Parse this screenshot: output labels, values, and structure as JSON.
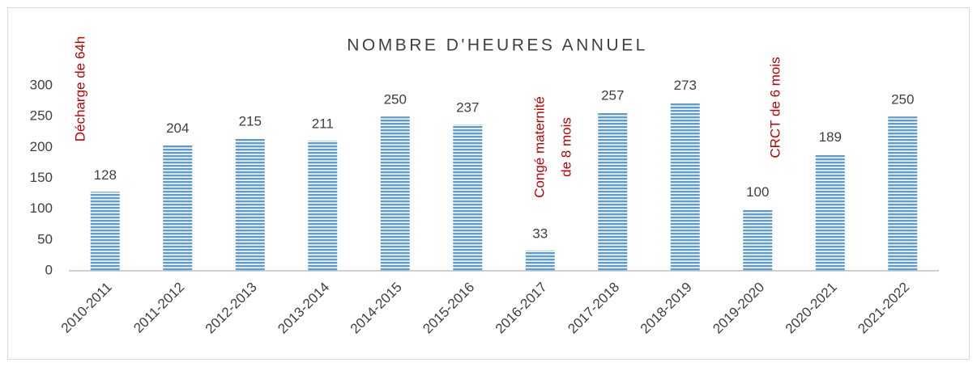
{
  "chart_data": {
    "type": "bar",
    "title": "NOMBRE D'HEURES ANNUEL",
    "categories": [
      "2010-2011",
      "2011-2012",
      "2012-2013",
      "2013-2014",
      "2014-2015",
      "2015-2016",
      "2016-2017",
      "2017-2018",
      "2018-2019",
      "2019-2020",
      "2020-2021",
      "2021-2022"
    ],
    "values": [
      128,
      204,
      215,
      211,
      250,
      237,
      33,
      257,
      273,
      100,
      189,
      250
    ],
    "color": "#5b9bd5",
    "ylim": [
      0,
      300
    ],
    "yticks": [
      0,
      50,
      100,
      150,
      200,
      250,
      300
    ],
    "grid": false,
    "annotations": [
      [
        "Décharge de 64h"
      ],
      [
        "Congé maternité",
        "de 8 mois"
      ],
      [
        "CRCT de 6 mois"
      ]
    ]
  }
}
